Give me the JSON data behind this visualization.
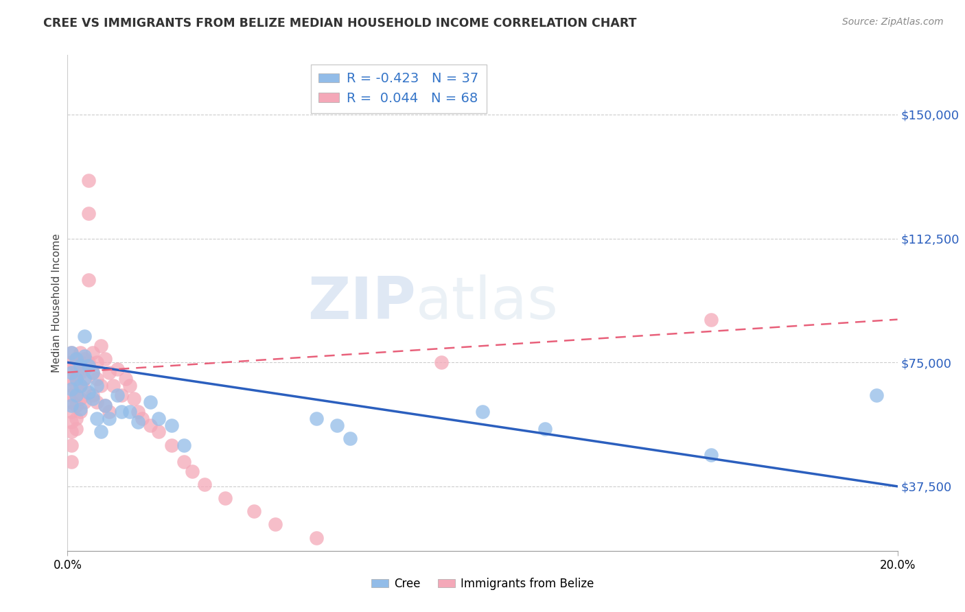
{
  "title": "CREE VS IMMIGRANTS FROM BELIZE MEDIAN HOUSEHOLD INCOME CORRELATION CHART",
  "source": "Source: ZipAtlas.com",
  "ylabel": "Median Household Income",
  "yticks": [
    37500,
    75000,
    112500,
    150000
  ],
  "ytick_labels": [
    "$37,500",
    "$75,000",
    "$112,500",
    "$150,000"
  ],
  "xlim": [
    0.0,
    0.2
  ],
  "ylim": [
    18000,
    168000
  ],
  "cree_color": "#92bce8",
  "belize_color": "#f4a8b8",
  "cree_line_color": "#2b5fbe",
  "belize_line_color": "#e8607a",
  "legend_r_cree": "-0.423",
  "legend_n_cree": "37",
  "legend_r_belize": "0.044",
  "legend_n_belize": "68",
  "watermark_zip": "ZIP",
  "watermark_atlas": "atlas",
  "legend_text_color": "#3575c8",
  "cree_points_x": [
    0.001,
    0.001,
    0.001,
    0.001,
    0.002,
    0.002,
    0.002,
    0.003,
    0.003,
    0.003,
    0.004,
    0.004,
    0.004,
    0.005,
    0.005,
    0.006,
    0.006,
    0.007,
    0.007,
    0.008,
    0.009,
    0.01,
    0.012,
    0.013,
    0.015,
    0.017,
    0.02,
    0.022,
    0.025,
    0.028,
    0.06,
    0.065,
    0.068,
    0.1,
    0.115,
    0.155,
    0.195
  ],
  "cree_points_y": [
    78000,
    72000,
    67000,
    62000,
    76000,
    70000,
    65000,
    74000,
    68000,
    61000,
    83000,
    77000,
    70000,
    74000,
    66000,
    72000,
    64000,
    68000,
    58000,
    54000,
    62000,
    58000,
    65000,
    60000,
    60000,
    57000,
    63000,
    58000,
    56000,
    50000,
    58000,
    56000,
    52000,
    60000,
    55000,
    47000,
    65000
  ],
  "belize_points_x": [
    0.001,
    0.001,
    0.001,
    0.001,
    0.001,
    0.001,
    0.001,
    0.001,
    0.001,
    0.001,
    0.001,
    0.001,
    0.002,
    0.002,
    0.002,
    0.002,
    0.002,
    0.002,
    0.002,
    0.002,
    0.002,
    0.003,
    0.003,
    0.003,
    0.003,
    0.003,
    0.003,
    0.004,
    0.004,
    0.004,
    0.004,
    0.004,
    0.005,
    0.005,
    0.005,
    0.005,
    0.006,
    0.006,
    0.006,
    0.007,
    0.007,
    0.007,
    0.008,
    0.008,
    0.009,
    0.009,
    0.01,
    0.01,
    0.011,
    0.012,
    0.013,
    0.014,
    0.015,
    0.016,
    0.017,
    0.018,
    0.02,
    0.022,
    0.025,
    0.028,
    0.03,
    0.033,
    0.038,
    0.045,
    0.05,
    0.06,
    0.09,
    0.155
  ],
  "belize_points_y": [
    78000,
    75000,
    73000,
    70000,
    68000,
    65000,
    63000,
    60000,
    57000,
    54000,
    50000,
    45000,
    76000,
    74000,
    72000,
    70000,
    68000,
    65000,
    62000,
    58000,
    55000,
    78000,
    75000,
    72000,
    68000,
    64000,
    60000,
    76000,
    73000,
    70000,
    67000,
    63000,
    130000,
    120000,
    100000,
    75000,
    78000,
    72000,
    65000,
    75000,
    70000,
    63000,
    80000,
    68000,
    76000,
    62000,
    72000,
    60000,
    68000,
    73000,
    65000,
    70000,
    68000,
    64000,
    60000,
    58000,
    56000,
    54000,
    50000,
    45000,
    42000,
    38000,
    34000,
    30000,
    26000,
    22000,
    75000,
    88000
  ]
}
